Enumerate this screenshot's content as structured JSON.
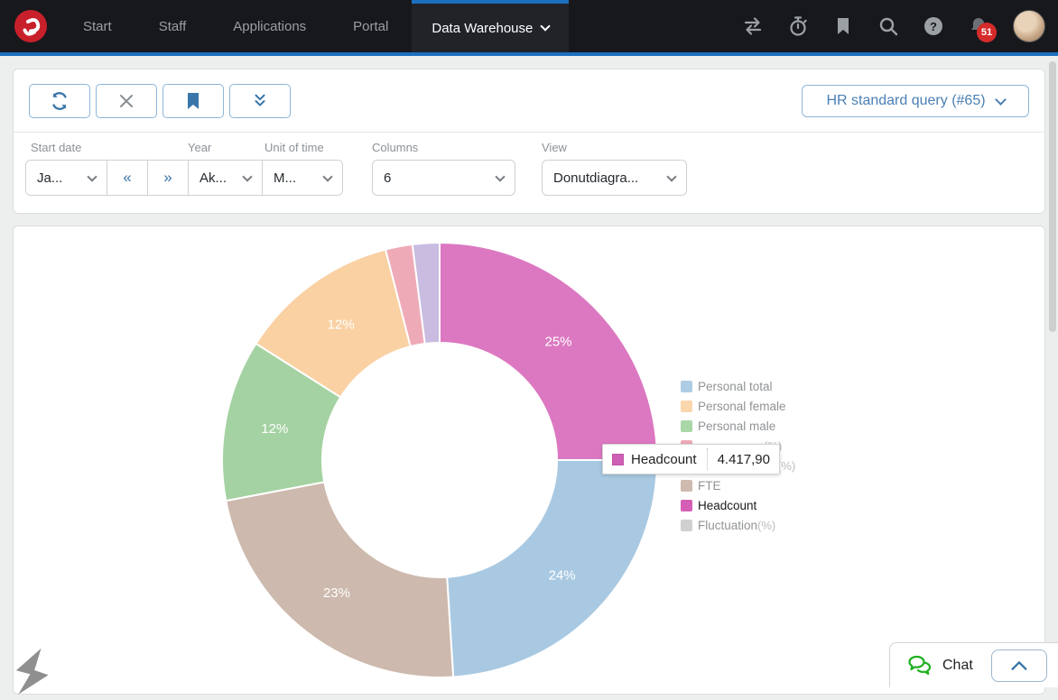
{
  "nav": {
    "items": [
      {
        "label": "Start"
      },
      {
        "label": "Staff"
      },
      {
        "label": "Applications"
      },
      {
        "label": "Portal"
      }
    ],
    "active_item": "Data Warehouse",
    "notification_count": "51",
    "colors": {
      "accent_blue": "#1c6fbf",
      "badge_red": "#d52b2b",
      "nav_bg": "#17181c"
    }
  },
  "toolbar": {
    "buttons": [
      "refresh",
      "close",
      "bookmark",
      "collapse-all"
    ],
    "query_selector_label": "HR standard query (#65)"
  },
  "filters": {
    "start_date": {
      "label": "Start date",
      "value": "Ja..."
    },
    "year_prev": "«",
    "year_next": "»",
    "year": {
      "label": "Year",
      "value": "Ak..."
    },
    "unit_of_time": {
      "label": "Unit of time",
      "value": "M..."
    },
    "columns": {
      "label": "Columns",
      "value": "6"
    },
    "view": {
      "label": "View",
      "value": "Donutdiagra..."
    }
  },
  "chart_data": {
    "type": "pie",
    "subtype": "donut",
    "title": "",
    "legend_position": "right",
    "slices": [
      {
        "name": "Headcount",
        "percent": 25,
        "color": "#dc78c1",
        "label": "25%"
      },
      {
        "name": "Personal total",
        "percent": 24,
        "color": "#a9c9e2",
        "label": "24%"
      },
      {
        "name": "FTE",
        "percent": 23,
        "color": "#cdb9ad",
        "label": "23%"
      },
      {
        "name": "Personal male",
        "percent": 12,
        "color": "#a5d2a2",
        "label": "12%"
      },
      {
        "name": "Personal female",
        "percent": 12,
        "color": "#fad1a3",
        "label": "12%"
      },
      {
        "name": "(%)",
        "label_hidden_by_tooltip": true,
        "percent": 2,
        "color": "#efaab8",
        "label": ""
      },
      {
        "name": "(%)",
        "label_hidden_by_tooltip": true,
        "percent": 2,
        "color": "#c9bce0",
        "label": ""
      }
    ],
    "legend": [
      {
        "label": "Personal total",
        "suffix": "",
        "color": "#aecde5",
        "active": false,
        "covered": false,
        "offset": 0
      },
      {
        "label": "Personal female",
        "suffix": "",
        "color": "#fbd7ad",
        "active": false,
        "covered": false,
        "offset": 0
      },
      {
        "label": "Personal male",
        "suffix": "",
        "color": "#aad7a8",
        "active": false,
        "covered": false,
        "offset": 0
      },
      {
        "label": "",
        "suffix": "(%)",
        "color": "#efaab8",
        "active": false,
        "covered": true,
        "offset": 73
      },
      {
        "label": "",
        "suffix": "(%)",
        "color": "#c9bce0",
        "active": false,
        "covered": true,
        "offset": 88
      },
      {
        "label": "FTE",
        "suffix": "",
        "color": "#cfbab0",
        "active": false,
        "covered": false,
        "offset": 0
      },
      {
        "label": "Headcount",
        "suffix": "",
        "color": "#d45fb5",
        "active": true,
        "covered": false,
        "offset": 0
      },
      {
        "label": "Fluctuation",
        "suffix": "(%)",
        "color": "#d0d0d0",
        "active": false,
        "covered": false,
        "offset": 0
      }
    ],
    "tooltip": {
      "label": "Headcount",
      "value": "4.417,90"
    }
  },
  "chat": {
    "label": "Chat"
  }
}
